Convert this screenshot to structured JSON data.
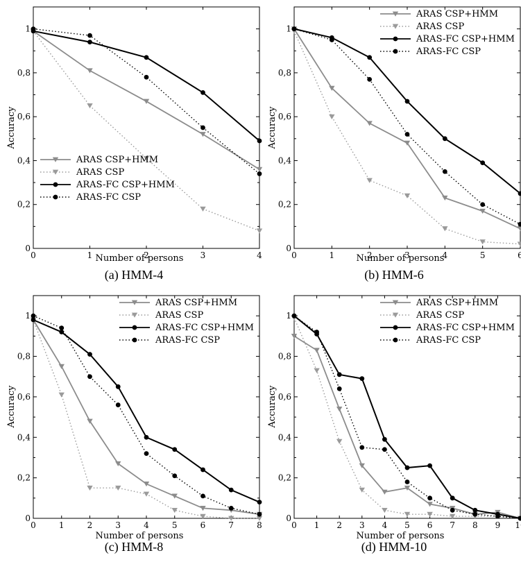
{
  "series_styles": [
    {
      "name": "ARAS CSP+HMM",
      "color": "#8c8c8c",
      "dash": "solid",
      "marker": "triangle-down"
    },
    {
      "name": "ARAS CSP",
      "color": "#9a9a9a",
      "dash": "dotted",
      "marker": "triangle-down"
    },
    {
      "name": "ARAS-FC  CSP+HMM",
      "color": "#000000",
      "dash": "solid",
      "marker": "circle"
    },
    {
      "name": "ARAS-FC CSP",
      "color": "#000000",
      "dash": "dotted",
      "marker": "circle"
    }
  ],
  "chart_data": [
    {
      "type": "line",
      "caption": "(a) HMM-4",
      "xlabel": "Number of persons",
      "ylabel": "Accuracy",
      "xlim": [
        0,
        4
      ],
      "ylim": [
        0,
        1.1
      ],
      "xticks": [
        "0",
        "1",
        "2",
        "3",
        "4"
      ],
      "yticks": [
        "0",
        "0,2",
        "0,4",
        "0,6",
        "0,8",
        "1"
      ],
      "legend_position": "bottom-left",
      "legend": [
        "ARAS CSP+HMM",
        "ARAS CSP",
        "ARAS-FC  CSP+HMM",
        "ARAS-FC CSP"
      ],
      "x": [
        0,
        1,
        2,
        3,
        4
      ],
      "series": [
        {
          "name": "ARAS CSP+HMM",
          "values": [
            0.99,
            0.81,
            0.67,
            0.52,
            0.36
          ]
        },
        {
          "name": "ARAS CSP",
          "values": [
            0.99,
            0.65,
            0.41,
            0.18,
            0.08
          ]
        },
        {
          "name": "ARAS-FC  CSP+HMM",
          "values": [
            0.99,
            0.94,
            0.87,
            0.71,
            0.49
          ]
        },
        {
          "name": "ARAS-FC CSP",
          "values": [
            1.0,
            0.97,
            0.78,
            0.55,
            0.34
          ]
        }
      ]
    },
    {
      "type": "line",
      "caption": "(b) HMM-6",
      "xlabel": "Number of persons",
      "ylabel": "Accuracy",
      "xlim": [
        0,
        6
      ],
      "ylim": [
        0,
        1.1
      ],
      "xticks": [
        "0",
        "1",
        "2",
        "3",
        "4",
        "5",
        "6"
      ],
      "yticks": [
        "0",
        "0,2",
        "0,4",
        "0,6",
        "0,8",
        "1"
      ],
      "legend_position": "top-right",
      "legend": [
        "ARAS CSP+HMM",
        "ARAS CSP",
        "ARAS-FC CSP+HMM",
        "ARAS-FC CSP"
      ],
      "x": [
        0,
        1,
        2,
        3,
        4,
        5,
        6
      ],
      "series": [
        {
          "name": "ARAS CSP+HMM",
          "values": [
            1.0,
            0.73,
            0.57,
            0.48,
            0.23,
            0.17,
            0.09
          ]
        },
        {
          "name": "ARAS CSP",
          "values": [
            0.99,
            0.6,
            0.31,
            0.24,
            0.09,
            0.03,
            0.02
          ]
        },
        {
          "name": "ARAS-FC CSP+HMM",
          "values": [
            1.0,
            0.96,
            0.87,
            0.67,
            0.5,
            0.39,
            0.25
          ]
        },
        {
          "name": "ARAS-FC CSP",
          "values": [
            1.0,
            0.95,
            0.77,
            0.52,
            0.35,
            0.2,
            0.11
          ]
        }
      ]
    },
    {
      "type": "line",
      "caption": "(c) HMM-8",
      "xlabel": "Number of persons",
      "ylabel": "Accuracy",
      "xlim": [
        0,
        8
      ],
      "ylim": [
        0,
        1.1
      ],
      "xticks": [
        "0",
        "1",
        "2",
        "3",
        "4",
        "5",
        "6",
        "7",
        "8"
      ],
      "yticks": [
        "0",
        "0,2",
        "0,4",
        "0,6",
        "0,8",
        "1"
      ],
      "legend_position": "top-right",
      "legend": [
        "ARAS CSP+HMM",
        "ARAS CSP",
        "ARAS-FC CSP+HMM",
        "ARAS-FC CSP"
      ],
      "x": [
        0,
        1,
        2,
        3,
        4,
        5,
        6,
        7,
        8
      ],
      "series": [
        {
          "name": "ARAS CSP+HMM",
          "values": [
            0.98,
            0.75,
            0.48,
            0.27,
            0.17,
            0.11,
            0.05,
            0.04,
            0.02
          ]
        },
        {
          "name": "ARAS CSP",
          "values": [
            0.98,
            0.61,
            0.15,
            0.15,
            0.12,
            0.04,
            0.01,
            0.0,
            0.0
          ]
        },
        {
          "name": "ARAS-FC CSP+HMM",
          "values": [
            0.98,
            0.92,
            0.81,
            0.65,
            0.4,
            0.34,
            0.24,
            0.14,
            0.08
          ]
        },
        {
          "name": "ARAS-FC CSP",
          "values": [
            1.0,
            0.94,
            0.7,
            0.56,
            0.32,
            0.21,
            0.11,
            0.05,
            0.02
          ]
        }
      ]
    },
    {
      "type": "line",
      "caption": "(d) HMM-10",
      "xlabel": "Number of persons",
      "ylabel": "Accuracy",
      "xlim": [
        0,
        10
      ],
      "ylim": [
        0,
        1.1
      ],
      "xticks": [
        "0",
        "1",
        "2",
        "3",
        "4",
        "5",
        "6",
        "7",
        "8",
        "9",
        "10"
      ],
      "yticks": [
        "0",
        "0,2",
        "0,4",
        "0,6",
        "0,8",
        "1"
      ],
      "legend_position": "top-right",
      "legend": [
        "ARAS CSP+HMM",
        "ARAS CSP",
        "ARAS-FC CSP+HMM",
        "ARAS-FC CSP"
      ],
      "x": [
        0,
        1,
        2,
        3,
        4,
        5,
        6,
        7,
        8,
        9,
        10
      ],
      "series": [
        {
          "name": "ARAS CSP+HMM",
          "values": [
            0.9,
            0.83,
            0.54,
            0.26,
            0.13,
            0.15,
            0.07,
            0.05,
            0.02,
            0.03,
            0.0
          ]
        },
        {
          "name": "ARAS CSP",
          "values": [
            0.99,
            0.73,
            0.38,
            0.14,
            0.04,
            0.02,
            0.02,
            0.01,
            0.01,
            0.01,
            0.0
          ]
        },
        {
          "name": "ARAS-FC CSP+HMM",
          "values": [
            1.0,
            0.91,
            0.71,
            0.69,
            0.39,
            0.25,
            0.26,
            0.1,
            0.04,
            0.02,
            0.0
          ]
        },
        {
          "name": "ARAS-FC CSP",
          "values": [
            1.0,
            0.92,
            0.64,
            0.35,
            0.34,
            0.18,
            0.1,
            0.04,
            0.02,
            0.01,
            0.0
          ]
        }
      ]
    }
  ]
}
